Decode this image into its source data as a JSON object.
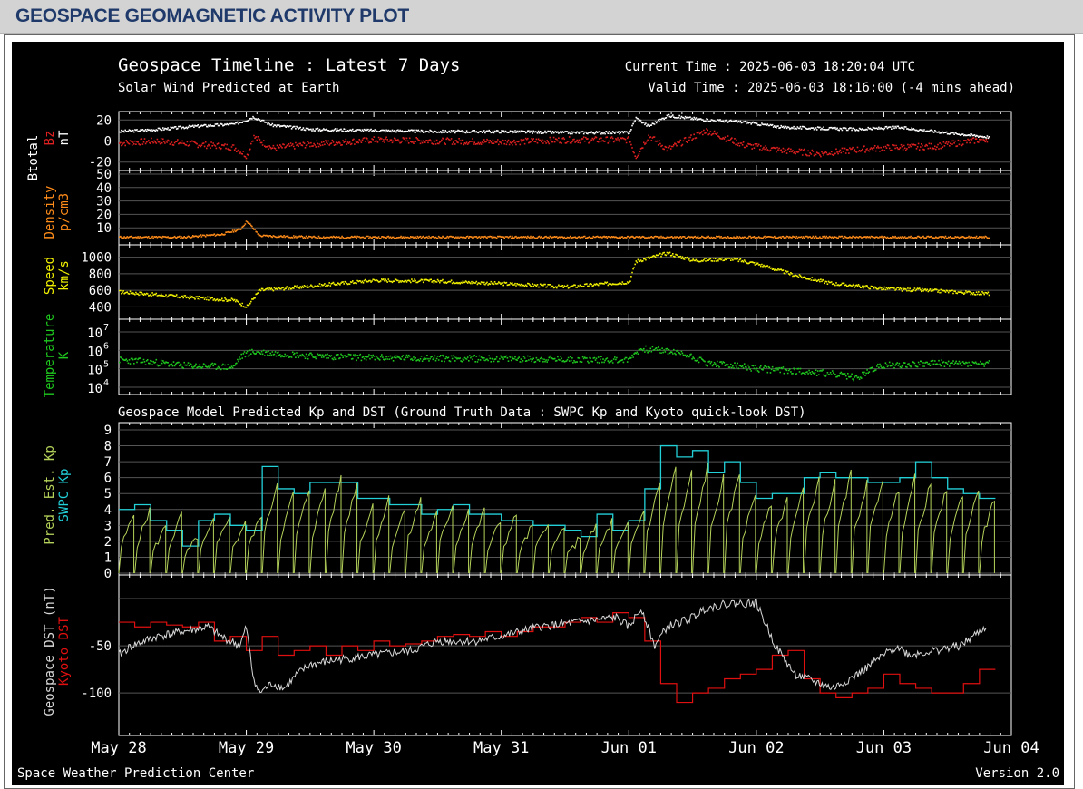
{
  "page_title": "GEOSPACE GEOMAGNETIC ACTIVITY PLOT",
  "plot": {
    "title": "Geospace Timeline : Latest 7 Days",
    "subtitle": "Solar Wind Predicted at Earth",
    "current_time": "Current Time : 2025-06-03 18:20:04 UTC",
    "valid_time": "Valid Time : 2025-06-03 18:16:00 (-4 mins ahead)",
    "model_title": "Geospace Model Predicted Kp and DST (Ground Truth Data : SWPC Kp and Kyoto quick-look DST)",
    "footer_left": "Space Weather Prediction Center",
    "footer_right": "Version 2.0"
  },
  "colors": {
    "background": "#000000",
    "btotal": "#ffffff",
    "bz": "#e02020",
    "density": "#ff8c1a",
    "speed": "#f2f200",
    "temperature": "#1ec81e",
    "pred_kp": "#b5d35a",
    "swpc_kp": "#22d0d8",
    "geospace_dst": "#d8d8d8",
    "kyoto_dst": "#e01010"
  },
  "chart_data": [
    {
      "type": "scatter",
      "panel": "magnetic_field",
      "ylabels": [
        "Btotal",
        "Bz",
        "nT"
      ],
      "yticks": [
        "20",
        "0",
        "-20"
      ],
      "ylim": [
        -28,
        28
      ],
      "x_unit": "days since May 28 00:00 UTC",
      "series": [
        {
          "name": "Btotal",
          "x": [
            0,
            0.3,
            0.6,
            0.9,
            1.0,
            1.05,
            1.2,
            1.5,
            2.0,
            2.5,
            3.0,
            3.5,
            4.0,
            4.05,
            4.15,
            4.3,
            4.6,
            4.9,
            5.2,
            5.5,
            5.8,
            6.1,
            6.4,
            6.8
          ],
          "y": [
            9,
            11,
            14,
            16,
            20,
            23,
            15,
            11,
            10,
            9,
            9,
            8,
            8,
            22,
            14,
            24,
            20,
            18,
            13,
            12,
            11,
            13,
            9,
            4
          ]
        },
        {
          "name": "Bz",
          "x": [
            0,
            0.3,
            0.6,
            0.9,
            1.0,
            1.05,
            1.2,
            1.5,
            2.0,
            2.5,
            3.0,
            3.5,
            4.0,
            4.05,
            4.15,
            4.3,
            4.6,
            4.9,
            5.2,
            5.5,
            5.8,
            6.1,
            6.4,
            6.8
          ],
          "y": [
            -2,
            0,
            -3,
            -6,
            -14,
            4,
            -7,
            -3,
            1,
            0,
            -1,
            1,
            1,
            -15,
            5,
            -8,
            10,
            -4,
            -9,
            -12,
            -8,
            -6,
            -5,
            2
          ]
        }
      ]
    },
    {
      "type": "scatter",
      "panel": "density",
      "ylabels": [
        "Density",
        "p/cm3"
      ],
      "yticks": [
        "50",
        "40",
        "30",
        "20",
        "10"
      ],
      "ylim": [
        0,
        50
      ],
      "series": [
        {
          "name": "Density",
          "x": [
            0,
            0.5,
            0.8,
            0.95,
            1.0,
            1.1,
            1.5,
            2.0,
            3.0,
            4.0,
            4.5,
            5.0,
            5.5,
            6.0,
            6.5,
            6.8
          ],
          "y": [
            3,
            3,
            5,
            9,
            15,
            4,
            3,
            3,
            3,
            3,
            3,
            3,
            3,
            3,
            3,
            3
          ]
        }
      ]
    },
    {
      "type": "scatter",
      "panel": "speed",
      "ylabels": [
        "Speed",
        "km/s"
      ],
      "yticks": [
        "1000",
        "800",
        "600",
        "400"
      ],
      "ylim": [
        250,
        1150
      ],
      "series": [
        {
          "name": "Speed",
          "x": [
            0,
            0.5,
            0.9,
            1.0,
            1.1,
            1.5,
            2.0,
            2.5,
            3.0,
            3.5,
            4.0,
            4.05,
            4.3,
            4.5,
            4.8,
            5.0,
            5.3,
            5.6,
            6.0,
            6.3,
            6.8
          ],
          "y": [
            580,
            520,
            480,
            400,
            600,
            650,
            720,
            710,
            680,
            640,
            700,
            950,
            1050,
            960,
            980,
            920,
            780,
            680,
            620,
            600,
            560
          ]
        }
      ]
    },
    {
      "type": "scatter",
      "panel": "temperature",
      "log_scale": true,
      "ylabels": [
        "Temperature",
        "K"
      ],
      "yticks": [
        "10^7",
        "10^6",
        "10^5",
        "10^4"
      ],
      "ylim": [
        10000,
        10000000
      ],
      "series": [
        {
          "name": "Temperature",
          "x": [
            0,
            0.5,
            0.9,
            1.0,
            1.05,
            1.5,
            2.0,
            3.0,
            4.0,
            4.1,
            4.3,
            4.6,
            5.0,
            5.5,
            5.8,
            6.0,
            6.4,
            6.8
          ],
          "y": [
            300000,
            150000,
            120000,
            700000,
            800000,
            500000,
            400000,
            350000,
            300000,
            1200000,
            900000,
            200000,
            100000,
            60000,
            30000,
            150000,
            200000,
            180000
          ]
        }
      ]
    },
    {
      "type": "line",
      "panel": "kp",
      "ylabels": [
        "Pred. Est. Kp",
        "SWPC Kp"
      ],
      "yticks": [
        "9",
        "8",
        "7",
        "6",
        "5",
        "4",
        "3",
        "2",
        "1",
        "0"
      ],
      "ylim": [
        0,
        9
      ],
      "series": [
        {
          "name": "SWPC Kp",
          "x": [
            0,
            0.125,
            0.25,
            0.375,
            0.5,
            0.625,
            0.75,
            0.875,
            1.0,
            1.125,
            1.25,
            1.375,
            1.5,
            1.625,
            1.75,
            1.875,
            2.0,
            2.125,
            2.25,
            2.375,
            2.5,
            2.625,
            2.75,
            2.875,
            3.0,
            3.125,
            3.25,
            3.375,
            3.5,
            3.625,
            3.75,
            3.875,
            4.0,
            4.125,
            4.25,
            4.375,
            4.5,
            4.625,
            4.75,
            4.875,
            5.0,
            5.125,
            5.25,
            5.375,
            5.5,
            5.625,
            5.75,
            5.875,
            6.0,
            6.125,
            6.25,
            6.375,
            6.5,
            6.625,
            6.75
          ],
          "y": [
            4,
            4.3,
            3.3,
            2.7,
            1.7,
            3.3,
            3.7,
            3,
            2.7,
            6.7,
            5.3,
            5,
            5.7,
            5.7,
            5.7,
            4.7,
            4.7,
            4.3,
            4.3,
            3.7,
            4,
            4.3,
            3.7,
            3.7,
            3.3,
            3.3,
            3,
            3,
            2.7,
            2.3,
            3.7,
            2.7,
            3.3,
            5.3,
            8,
            7.3,
            7.7,
            6.3,
            7,
            5.7,
            4.7,
            5,
            5,
            6,
            6.3,
            6,
            6,
            5.7,
            5.7,
            6,
            7,
            6,
            5.3,
            5,
            4.7
          ]
        },
        {
          "name": "Pred. Est. Kp",
          "x": [
            0,
            0.125,
            0.25,
            0.375,
            0.5,
            0.625,
            0.75,
            0.875,
            1.0,
            1.125,
            1.25,
            1.375,
            1.5,
            1.625,
            1.75,
            1.875,
            2.0,
            2.125,
            2.25,
            2.375,
            2.5,
            2.625,
            2.75,
            2.875,
            3.0,
            3.125,
            3.25,
            3.375,
            3.5,
            3.625,
            3.75,
            3.875,
            4.0,
            4.125,
            4.25,
            4.375,
            4.5,
            4.625,
            4.75,
            4.875,
            5.0,
            5.125,
            5.25,
            5.375,
            5.5,
            5.625,
            5.75,
            5.875,
            6.0,
            6.125,
            6.25,
            6.375,
            6.5,
            6.625,
            6.75
          ],
          "y": [
            3.7,
            4,
            3,
            3.7,
            2.3,
            3.3,
            3.7,
            3.3,
            3.7,
            5.7,
            5,
            5.3,
            5.3,
            6,
            5.7,
            4.3,
            4.7,
            4,
            4.7,
            3.7,
            4.3,
            4,
            4,
            3.3,
            3.7,
            3,
            3.3,
            3,
            2.3,
            3,
            3.3,
            3,
            4,
            5.7,
            6.7,
            6.3,
            6.7,
            6,
            6.3,
            5,
            4.3,
            4.7,
            5.3,
            6,
            5.7,
            6.3,
            5.7,
            6,
            5.3,
            6,
            5.7,
            5.3,
            5,
            5.3,
            4.7
          ]
        }
      ]
    },
    {
      "type": "line",
      "panel": "dst",
      "ylabels": [
        "Geospace DST (nT)",
        "Kyoto DST"
      ],
      "yticks": [
        "-50",
        "-100"
      ],
      "ylim": [
        -145,
        25
      ],
      "series": [
        {
          "name": "Geospace DST",
          "x": [
            0,
            0.1,
            0.3,
            0.5,
            0.7,
            0.8,
            0.95,
            1.0,
            1.05,
            1.1,
            1.2,
            1.3,
            1.4,
            1.5,
            1.7,
            2.0,
            2.3,
            2.5,
            2.8,
            3.0,
            3.3,
            3.6,
            3.9,
            4.0,
            4.1,
            4.2,
            4.3,
            4.5,
            4.6,
            4.8,
            5.0,
            5.15,
            5.3,
            5.6,
            5.8,
            6.0,
            6.1,
            6.2,
            6.4,
            6.6,
            6.8
          ],
          "y": [
            -60,
            -50,
            -40,
            -35,
            -30,
            -40,
            -50,
            -30,
            -80,
            -100,
            -90,
            -95,
            -80,
            -70,
            -65,
            -60,
            -55,
            -45,
            -45,
            -40,
            -30,
            -25,
            -20,
            -30,
            -10,
            -50,
            -30,
            -20,
            -10,
            -5,
            -5,
            -50,
            -80,
            -95,
            -80,
            -60,
            -50,
            -60,
            -55,
            -50,
            -30
          ]
        },
        {
          "name": "Kyoto DST",
          "x": [
            0,
            0.125,
            0.25,
            0.375,
            0.5,
            0.625,
            0.75,
            0.875,
            1.0,
            1.125,
            1.25,
            1.375,
            1.5,
            1.625,
            1.75,
            1.875,
            2.0,
            2.125,
            2.25,
            2.375,
            2.5,
            2.625,
            2.75,
            2.875,
            3.0,
            3.125,
            3.25,
            3.375,
            3.5,
            3.625,
            3.75,
            3.875,
            4.0,
            4.125,
            4.25,
            4.375,
            4.5,
            4.625,
            4.75,
            4.875,
            5.0,
            5.125,
            5.25,
            5.375,
            5.5,
            5.625,
            5.75,
            5.875,
            6.0,
            6.125,
            6.25,
            6.375,
            6.5,
            6.625,
            6.75
          ],
          "y": [
            -25,
            -30,
            -25,
            -28,
            -30,
            -25,
            -45,
            -40,
            -55,
            -40,
            -60,
            -55,
            -50,
            -60,
            -50,
            -55,
            -45,
            -50,
            -48,
            -45,
            -40,
            -38,
            -40,
            -35,
            -40,
            -35,
            -30,
            -30,
            -25,
            -20,
            -25,
            -15,
            -20,
            -45,
            -90,
            -110,
            -100,
            -95,
            -85,
            -80,
            -75,
            -60,
            -55,
            -85,
            -100,
            -105,
            -100,
            -95,
            -80,
            -90,
            -95,
            -100,
            -100,
            -90,
            -75
          ]
        }
      ]
    }
  ],
  "x_axis": {
    "ticks": [
      "May 28",
      "May 29",
      "May 30",
      "May 31",
      "Jun 01",
      "Jun 02",
      "Jun 03",
      "Jun 04"
    ]
  }
}
